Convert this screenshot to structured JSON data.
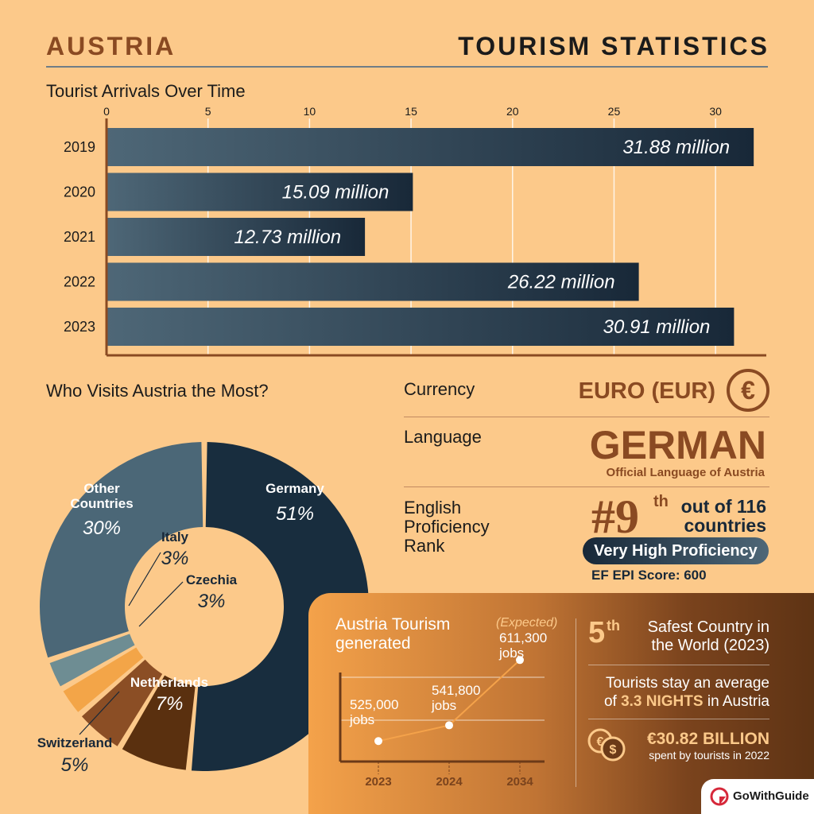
{
  "header": {
    "country": "AUSTRIA",
    "title": "TOURISM STATISTICS"
  },
  "colors": {
    "bar_dark": "#182838",
    "bar_light": "#4e6777",
    "brown": "#8a4a22",
    "background": "#fcc98a"
  },
  "chart_data": [
    {
      "type": "bar",
      "orientation": "horizontal",
      "title": "Tourist Arrivals Over Time",
      "categories": [
        "2019",
        "2020",
        "2021",
        "2022",
        "2023"
      ],
      "values": [
        31.88,
        15.09,
        12.73,
        26.22,
        30.91
      ],
      "data_labels": [
        "31.88 million",
        "15.09 million",
        "12.73 million",
        "26.22 million",
        "30.91 million"
      ],
      "xlim": [
        0,
        32.5
      ],
      "x_ticks": [
        0,
        5,
        10,
        15,
        20,
        25,
        30
      ],
      "grid": true
    },
    {
      "type": "pie",
      "style": "donut",
      "title": "Who Visits Austria the Most?",
      "slices": [
        {
          "label": "Germany",
          "value": 51,
          "display": "51%",
          "color": "#182d3e"
        },
        {
          "label": "Netherlands",
          "value": 7,
          "display": "7%",
          "color": "#5a300f"
        },
        {
          "label": "Switzerland",
          "value": 5,
          "display": "5%",
          "color": "#8b4e25"
        },
        {
          "label": "Czechia",
          "value": 3,
          "display": "3%",
          "color": "#f3a548"
        },
        {
          "label": "Italy",
          "value": 3,
          "display": "3%",
          "color": "#6e8d93"
        },
        {
          "label": "Other Countries",
          "value": 30,
          "display": "30%",
          "color": "#4b6777"
        }
      ]
    },
    {
      "type": "line",
      "title": "Austria Tourism generated",
      "categories": [
        "2023",
        "2024",
        "2034"
      ],
      "values": [
        525000,
        541800,
        611300
      ],
      "labels": [
        "525,000",
        "541,800",
        "611,300"
      ],
      "unit": "jobs",
      "annotation": "(Expected)"
    }
  ],
  "currency": {
    "label": "Currency",
    "value": "EURO (EUR)",
    "icon": "euro-icon"
  },
  "language": {
    "label": "Language",
    "value": "GERMAN",
    "sub": "Official Language of Austria"
  },
  "english": {
    "label_lines": [
      "English",
      "Proficiency",
      "Rank"
    ],
    "rank": "#9",
    "suffix": "th",
    "out_of_line1": "out of 116",
    "out_of_line2": "countries",
    "badge": "Very High Proficiency",
    "score": "EF EPI Score: 600"
  },
  "panel": {
    "title_line1": "Austria Tourism",
    "title_line2": "generated",
    "safe_rank": "5",
    "safe_suffix": "th",
    "safe_line1": "Safest Country in",
    "safe_line2": "the World (2023)",
    "stay_line1": "Tourists stay an average",
    "stay_pre": "of ",
    "stay_value": "3.3 NIGHTS",
    "stay_post": " in Austria",
    "spent_value": "€30.82 BILLION",
    "spent_sub": "spent by tourists in 2022"
  },
  "logo": {
    "text": "GoWithGuide"
  }
}
